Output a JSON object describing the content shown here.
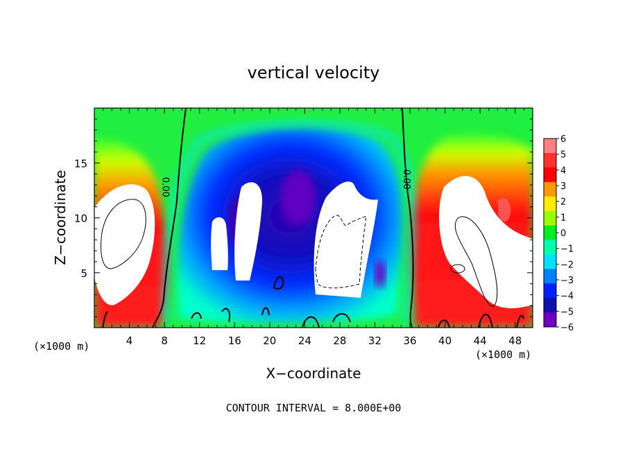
{
  "chart_data": {
    "type": "heatmap",
    "title": "vertical velocity",
    "xlabel": "X−coordinate",
    "ylabel": "Z−coordinate",
    "x_unit_label": "(×1000 m)",
    "x_unit_label_right": "(×1000 m)",
    "footer": "CONTOUR INTERVAL = 8.000E+00",
    "xlim": [
      0,
      50
    ],
    "ylim": [
      0,
      20
    ],
    "x_ticks": [
      4,
      8,
      12,
      16,
      20,
      24,
      28,
      32,
      36,
      40,
      44,
      48
    ],
    "x_tick_labels": [
      "4",
      "8",
      "12",
      "16",
      "20",
      "24",
      "28",
      "32",
      "36",
      "40",
      "44",
      "48"
    ],
    "y_ticks": [
      5,
      10,
      15
    ],
    "y_tick_labels": [
      "5",
      "10",
      "15"
    ],
    "colorbar": {
      "values": [
        6,
        5,
        4,
        3,
        2,
        1,
        0,
        -1,
        -2,
        -3,
        -4,
        -5,
        -6
      ],
      "labels": [
        "6",
        "5",
        "4",
        "3",
        "2",
        "1",
        "0",
        "−1",
        "−2",
        "−3",
        "−4",
        "−5",
        "−6"
      ],
      "colors": [
        "#ff8080",
        "#ff3030",
        "#ff0000",
        "#ff9900",
        "#ffee00",
        "#99ff00",
        "#00ee22",
        "#00ffaa",
        "#00e0ff",
        "#0080ff",
        "#0020ff",
        "#1010b0",
        "#7000c0"
      ]
    },
    "contour_labels": [
      {
        "text": "0.00",
        "x": 7.8,
        "z": 12.8
      },
      {
        "text": "0.00",
        "x": 35.3,
        "z": 13.5
      }
    ],
    "field_description_cells": {
      "x": [
        0,
        4,
        8,
        10,
        12,
        16,
        20,
        24,
        28,
        32,
        34,
        36,
        40,
        44,
        48,
        50
      ],
      "z": [
        0,
        2,
        5,
        8,
        11,
        14,
        17,
        20
      ]
    }
  }
}
